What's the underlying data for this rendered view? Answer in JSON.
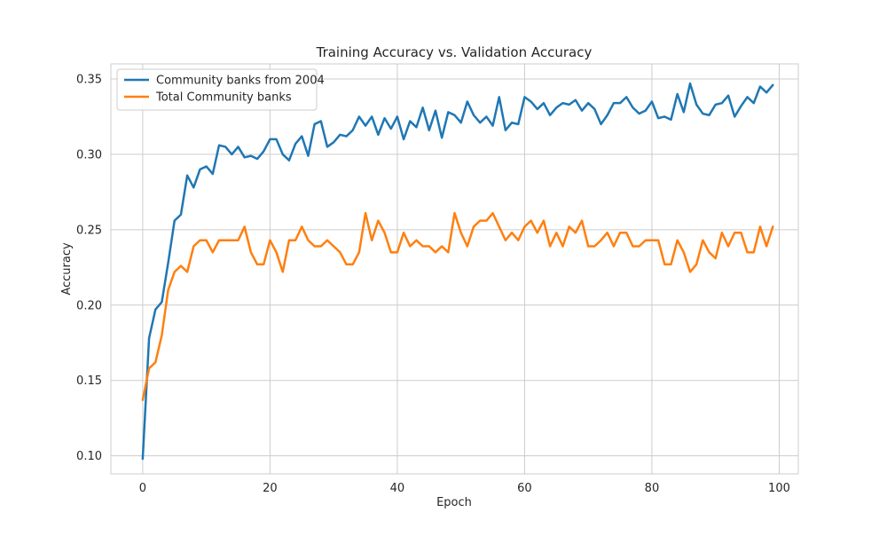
{
  "chart_data": {
    "type": "line",
    "title": "Training Accuracy vs. Validation Accuracy",
    "xlabel": "Epoch",
    "ylabel": "Accuracy",
    "xlim": [
      -5,
      103
    ],
    "ylim": [
      0.088,
      0.36
    ],
    "xticks": [
      0,
      20,
      40,
      60,
      80,
      100
    ],
    "yticks": [
      0.1,
      0.15,
      0.2,
      0.25,
      0.3,
      0.35
    ],
    "xtick_labels": [
      "0",
      "20",
      "40",
      "60",
      "80",
      "100"
    ],
    "ytick_labels": [
      "0.10",
      "0.15",
      "0.20",
      "0.25",
      "0.30",
      "0.35"
    ],
    "grid": true,
    "legend_position": "upper-left",
    "series": [
      {
        "name": "Community banks from 2004",
        "color": "#1f77b4",
        "values": [
          0.098,
          0.178,
          0.197,
          0.202,
          0.228,
          0.256,
          0.26,
          0.286,
          0.278,
          0.29,
          0.292,
          0.287,
          0.306,
          0.305,
          0.3,
          0.305,
          0.298,
          0.299,
          0.297,
          0.302,
          0.31,
          0.31,
          0.3,
          0.296,
          0.307,
          0.312,
          0.299,
          0.32,
          0.322,
          0.305,
          0.308,
          0.313,
          0.312,
          0.316,
          0.325,
          0.319,
          0.325,
          0.313,
          0.324,
          0.317,
          0.325,
          0.31,
          0.322,
          0.318,
          0.331,
          0.316,
          0.329,
          0.311,
          0.328,
          0.326,
          0.321,
          0.335,
          0.326,
          0.321,
          0.325,
          0.319,
          0.338,
          0.316,
          0.321,
          0.32,
          0.338,
          0.335,
          0.33,
          0.334,
          0.326,
          0.331,
          0.334,
          0.333,
          0.336,
          0.329,
          0.334,
          0.33,
          0.32,
          0.326,
          0.334,
          0.334,
          0.338,
          0.331,
          0.327,
          0.329,
          0.335,
          0.324,
          0.325,
          0.323,
          0.34,
          0.328,
          0.347,
          0.333,
          0.327,
          0.326,
          0.333,
          0.334,
          0.339,
          0.325,
          0.332,
          0.338,
          0.334,
          0.345,
          0.341,
          0.346
        ]
      },
      {
        "name": "Total Community banks",
        "color": "#ff7f0e",
        "values": [
          0.137,
          0.158,
          0.162,
          0.18,
          0.21,
          0.222,
          0.226,
          0.222,
          0.239,
          0.243,
          0.243,
          0.235,
          0.243,
          0.243,
          0.243,
          0.243,
          0.252,
          0.235,
          0.227,
          0.227,
          0.243,
          0.235,
          0.222,
          0.243,
          0.243,
          0.252,
          0.243,
          0.239,
          0.239,
          0.243,
          0.239,
          0.235,
          0.227,
          0.227,
          0.235,
          0.261,
          0.243,
          0.256,
          0.248,
          0.235,
          0.235,
          0.248,
          0.239,
          0.243,
          0.239,
          0.239,
          0.235,
          0.239,
          0.235,
          0.261,
          0.248,
          0.239,
          0.252,
          0.256,
          0.256,
          0.261,
          0.252,
          0.243,
          0.248,
          0.243,
          0.252,
          0.256,
          0.248,
          0.256,
          0.239,
          0.248,
          0.239,
          0.252,
          0.248,
          0.256,
          0.239,
          0.239,
          0.243,
          0.248,
          0.239,
          0.248,
          0.248,
          0.239,
          0.239,
          0.243,
          0.243,
          0.243,
          0.227,
          0.227,
          0.243,
          0.235,
          0.222,
          0.227,
          0.243,
          0.235,
          0.231,
          0.248,
          0.239,
          0.248,
          0.248,
          0.235,
          0.235,
          0.252,
          0.239,
          0.252
        ]
      }
    ]
  }
}
